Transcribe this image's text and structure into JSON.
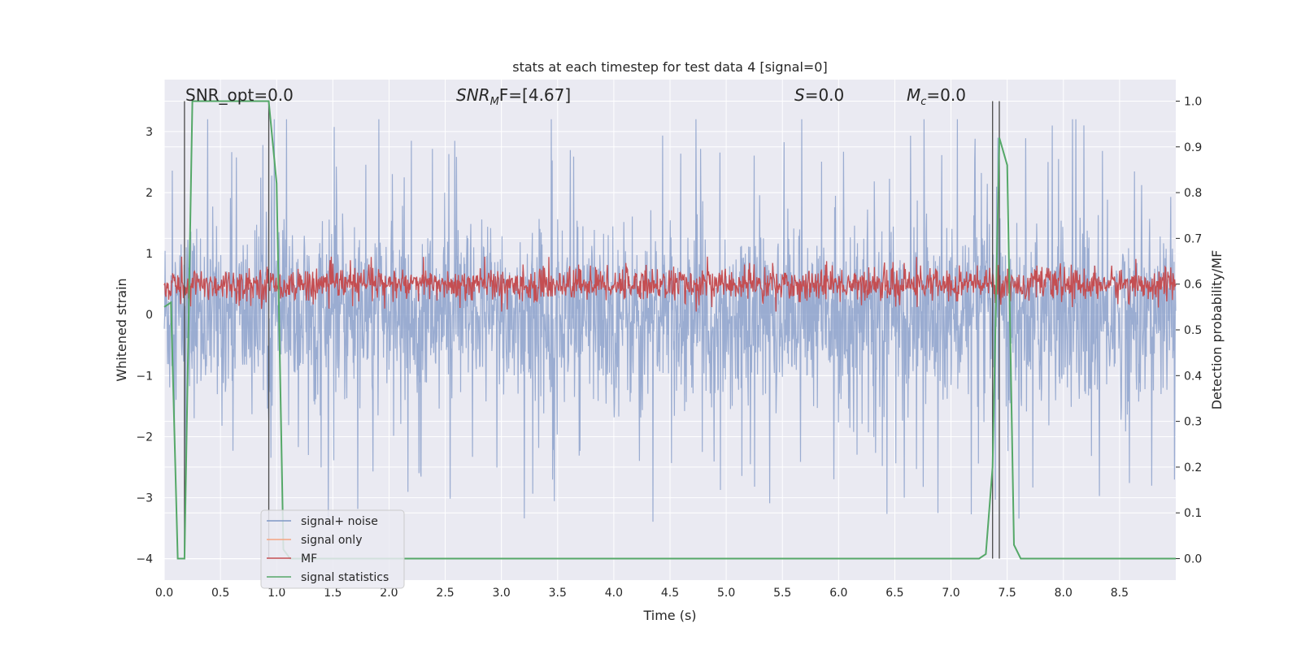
{
  "chart_data": {
    "type": "line",
    "title": "stats at each timestep for test data 4 [signal=0]",
    "xlabel": "Time (s)",
    "ylabel": "Whitened strain",
    "y2label": "Detection probability/MF",
    "xlim": [
      0.0,
      9.0
    ],
    "ylim": [
      -4.35,
      3.85
    ],
    "y2lim": [
      -0.047,
      1.047
    ],
    "x_ticks": [
      "0.0",
      "0.5",
      "1.0",
      "1.5",
      "2.0",
      "2.5",
      "3.0",
      "3.5",
      "4.0",
      "4.5",
      "5.0",
      "5.5",
      "6.0",
      "6.5",
      "7.0",
      "7.5",
      "8.0",
      "8.5"
    ],
    "y_ticks": [
      "3",
      "2",
      "1",
      "0",
      "−1",
      "−2",
      "−3",
      "−4"
    ],
    "y2_ticks": [
      "1.0",
      "0.9",
      "0.8",
      "0.7",
      "0.6",
      "0.5",
      "0.4",
      "0.3",
      "0.2",
      "0.1",
      "0.0"
    ],
    "grid": true,
    "annotations": {
      "snr_opt": "SNR_opt=0.0",
      "snr_mf_main": "SNR",
      "snr_mf_sub": "M",
      "snr_mf_rest": "F=[4.67]",
      "s_sym": "S",
      "s_val": "=0.0",
      "mc_main": "M",
      "mc_sub": "c",
      "mc_val": "=0.0"
    },
    "vertical_lines_x": [
      0.18,
      0.93,
      7.37,
      7.43
    ],
    "series": [
      {
        "name": "signal+ noise",
        "color": "#7f97c6",
        "description": "noise band, approx range -2.0 to +2.0 with spikes to +3.1 / -3.5"
      },
      {
        "name": "signal only",
        "color": "#f4a582",
        "values": []
      },
      {
        "name": "MF",
        "color": "#c44e52",
        "axis": "y2",
        "range": [
          0.55,
          0.65
        ]
      },
      {
        "name": "signal statistics",
        "color": "#55a868",
        "axis": "y2",
        "x": [
          0.0,
          0.06,
          0.12,
          0.18,
          0.25,
          0.31,
          0.37,
          0.43,
          0.5,
          0.56,
          0.62,
          0.68,
          0.75,
          0.81,
          0.87,
          0.93,
          1.0,
          1.06,
          1.12,
          1.2,
          1.5,
          2.0,
          3.0,
          4.0,
          5.0,
          6.0,
          7.0,
          7.25,
          7.31,
          7.37,
          7.43,
          7.5,
          7.56,
          7.62,
          7.7,
          8.0,
          8.5,
          9.0
        ],
        "values": [
          0.55,
          0.56,
          0.0,
          0.0,
          1.0,
          1.0,
          1.0,
          1.0,
          1.0,
          1.0,
          1.0,
          1.0,
          1.0,
          1.0,
          1.0,
          1.0,
          0.82,
          0.02,
          0.0,
          0.0,
          0.0,
          0.0,
          0.0,
          0.0,
          0.0,
          0.0,
          0.0,
          0.0,
          0.01,
          0.2,
          0.92,
          0.86,
          0.03,
          0.0,
          0.0,
          0.0,
          0.0,
          0.0
        ]
      }
    ],
    "legend": {
      "placement": "lower-left",
      "entries": [
        {
          "label": "signal+ noise",
          "color": "#7f97c6"
        },
        {
          "label": "signal only",
          "color": "#f4a582"
        },
        {
          "label": "MF",
          "color": "#c44e52"
        },
        {
          "label": "signal statistics",
          "color": "#55a868"
        }
      ]
    },
    "colors": {
      "axes_bg": "#eaeaf2",
      "grid": "#ffffff",
      "vline": "#4a4a4a"
    }
  }
}
